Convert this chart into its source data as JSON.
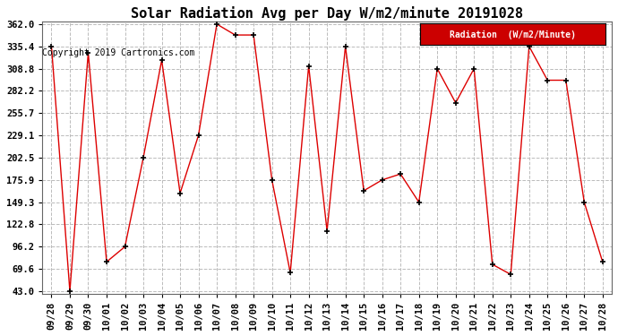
{
  "title": "Solar Radiation Avg per Day W/m2/minute 20191028",
  "copyright": "Copyright 2019 Cartronics.com",
  "legend_label": "Radiation  (W/m2/Minute)",
  "dates": [
    "09/28",
    "09/29",
    "09/30",
    "10/01",
    "10/02",
    "10/03",
    "10/04",
    "10/05",
    "10/06",
    "10/07",
    "10/08",
    "10/09",
    "10/10",
    "10/11",
    "10/12",
    "10/13",
    "10/14",
    "10/15",
    "10/16",
    "10/17",
    "10/18",
    "10/19",
    "10/20",
    "10/21",
    "10/22",
    "10/23",
    "10/24",
    "10/25",
    "10/26",
    "10/27",
    "10/28"
  ],
  "values": [
    335.4,
    43.0,
    328.0,
    78.0,
    96.2,
    202.5,
    319.0,
    160.0,
    229.1,
    362.0,
    349.0,
    349.0,
    175.9,
    65.0,
    312.0,
    115.0,
    335.4,
    163.0,
    175.9,
    183.0,
    149.3,
    308.8,
    268.0,
    308.8,
    75.0,
    63.0,
    335.4,
    295.0,
    295.0,
    149.3,
    78.0
  ],
  "ylim_min": 43.0,
  "ylim_max": 362.0,
  "yticks": [
    43.0,
    69.6,
    96.2,
    122.8,
    149.3,
    175.9,
    202.5,
    229.1,
    255.7,
    282.2,
    308.8,
    335.4,
    362.0
  ],
  "line_color": "#dd0000",
  "marker_color": "#000000",
  "bg_color": "#ffffff",
  "grid_color": "#bbbbbb",
  "legend_bg": "#cc0000",
  "legend_fg": "#ffffff",
  "title_fontsize": 11,
  "tick_fontsize": 7.5
}
